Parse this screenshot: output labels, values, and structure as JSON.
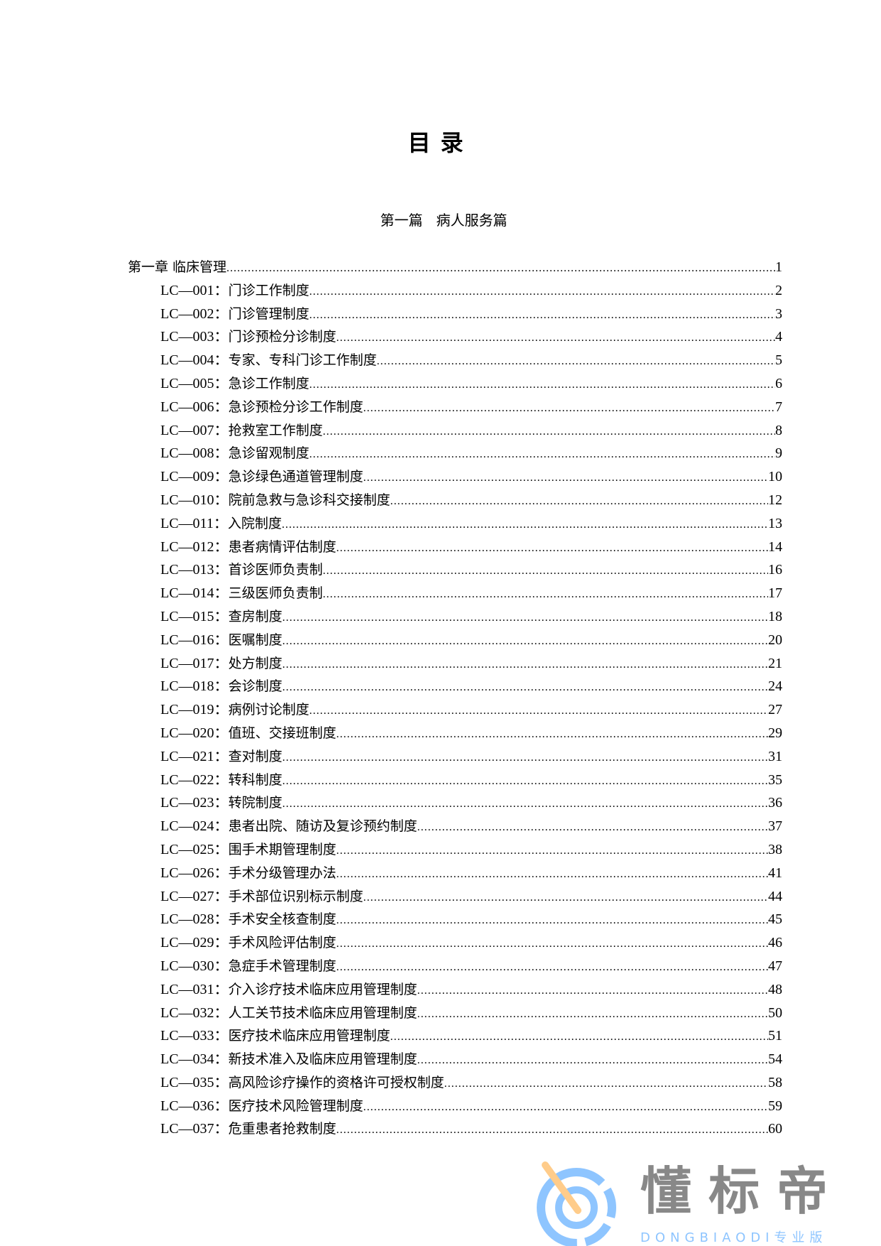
{
  "title": "目录",
  "part_title": "第一篇   病人服务篇",
  "chapter": {
    "label": "第一章  临床管理",
    "page": "1"
  },
  "entries": [
    {
      "code": "LC—001：",
      "name": "门诊工作制度",
      "page": "2"
    },
    {
      "code": "LC—002：",
      "name": "门诊管理制度",
      "page": "3"
    },
    {
      "code": "LC—003：",
      "name": "门诊预检分诊制度",
      "page": "4"
    },
    {
      "code": "LC—004：",
      "name": "专家、专科门诊工作制度",
      "page": "5"
    },
    {
      "code": "LC—005：",
      "name": "急诊工作制度",
      "page": "6"
    },
    {
      "code": "LC—006：",
      "name": "急诊预检分诊工作制度",
      "page": "7"
    },
    {
      "code": "LC—007：",
      "name": "抢救室工作制度",
      "page": "8"
    },
    {
      "code": "LC—008：",
      "name": "急诊留观制度",
      "page": "9"
    },
    {
      "code": "LC—009：",
      "name": "急诊绿色通道管理制度",
      "page": "10"
    },
    {
      "code": "LC—010：",
      "name": "院前急救与急诊科交接制度",
      "page": "12"
    },
    {
      "code": "LC—011：",
      "name": "入院制度",
      "page": "13"
    },
    {
      "code": "LC—012：",
      "name": "患者病情评估制度",
      "page": "14"
    },
    {
      "code": "LC—013：",
      "name": "首诊医师负责制",
      "page": "16"
    },
    {
      "code": "LC—014：",
      "name": "三级医师负责制",
      "page": "17"
    },
    {
      "code": "LC—015：",
      "name": "查房制度",
      "page": "18"
    },
    {
      "code": "LC—016：",
      "name": "医嘱制度",
      "page": "20"
    },
    {
      "code": "LC—017：",
      "name": "处方制度",
      "page": "21"
    },
    {
      "code": "LC—018：",
      "name": "会诊制度",
      "page": "24"
    },
    {
      "code": "LC—019：",
      "name": "病例讨论制度",
      "page": "27"
    },
    {
      "code": "LC—020：",
      "name": "值班、交接班制度",
      "page": "29"
    },
    {
      "code": "LC—021：",
      "name": "查对制度",
      "page": "31"
    },
    {
      "code": "LC—022：",
      "name": "转科制度",
      "page": "35"
    },
    {
      "code": "LC—023：",
      "name": "转院制度",
      "page": "36"
    },
    {
      "code": "LC—024：",
      "name": "患者出院、随访及复诊预约制度",
      "page": "37"
    },
    {
      "code": "LC—025：",
      "name": "围手术期管理制度",
      "page": "38"
    },
    {
      "code": "LC—026：",
      "name": "手术分级管理办法",
      "page": "41"
    },
    {
      "code": "LC—027：",
      "name": "手术部位识别标示制度",
      "page": "44"
    },
    {
      "code": "LC—028：",
      "name": "手术安全核查制度",
      "page": "45"
    },
    {
      "code": "LC—029：",
      "name": "手术风险评估制度",
      "page": "46"
    },
    {
      "code": "LC—030：",
      "name": "急症手术管理制度",
      "page": "47"
    },
    {
      "code": "LC—031：",
      "name": "介入诊疗技术临床应用管理制度",
      "page": "48"
    },
    {
      "code": "LC—032：",
      "name": "人工关节技术临床应用管理制度",
      "page": "50"
    },
    {
      "code": "LC—033：",
      "name": "医疗技术临床应用管理制度",
      "page": "51"
    },
    {
      "code": "LC—034：",
      "name": "新技术准入及临床应用管理制度",
      "page": "54"
    },
    {
      "code": "LC—035：",
      "name": "高风险诊疗操作的资格许可授权制度",
      "page": "58"
    },
    {
      "code": "LC—036：",
      "name": "医疗技术风险管理制度",
      "page": "59"
    },
    {
      "code": "LC—037：",
      "name": "危重患者抢救制度",
      "page": "60"
    }
  ],
  "watermark": {
    "brand": "懂标帝",
    "sub": "DONGBIAODI专业版",
    "icon": "target-arrow-logo",
    "color_blue": "#8ec5ff",
    "color_orange": "#ffcc8a",
    "color_gray": "#888888"
  }
}
